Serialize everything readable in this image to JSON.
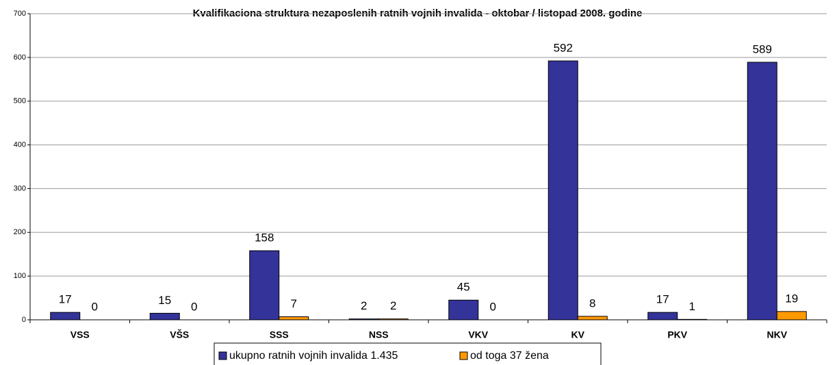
{
  "chart_data": {
    "type": "bar",
    "title": "Kvalifikaciona struktura nezaposlenih ratnih vojnih invalida - oktobar / listopad  2008. godine",
    "categories": [
      "VSS",
      "VŠS",
      "SSS",
      "NSS",
      "VKV",
      "KV",
      "PKV",
      "NKV"
    ],
    "series": [
      {
        "name": "ukupno ratnih vojnih invalida 1.435",
        "color": "#333399",
        "values": [
          17,
          15,
          158,
          2,
          45,
          592,
          17,
          589
        ]
      },
      {
        "name": "od toga 37 žena",
        "color": "#ff9900",
        "values": [
          0,
          0,
          7,
          2,
          0,
          8,
          1,
          19
        ]
      }
    ],
    "ylim": [
      0,
      700
    ],
    "yticks": [
      0,
      100,
      200,
      300,
      400,
      500,
      600,
      700
    ],
    "grid": true,
    "legend": "bottom"
  }
}
